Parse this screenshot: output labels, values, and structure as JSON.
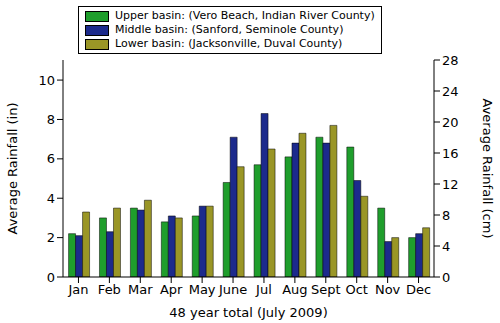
{
  "chart_data": {
    "type": "bar",
    "categories": [
      "Jan",
      "Feb",
      "Mar",
      "Apr",
      "May",
      "June",
      "Jul",
      "Aug",
      "Sept",
      "Oct",
      "Nov",
      "Dec"
    ],
    "x_label": "48 year total (July 2009)",
    "y_label": "Average Rainfall (in)",
    "y2_label": "Average Rainfall (cm)",
    "series": [
      {
        "name": "Upper basin: (Vero Beach, Indian River County)",
        "color": "#1f9e2c",
        "values": [
          2.2,
          3.0,
          3.5,
          2.8,
          3.1,
          4.8,
          5.7,
          6.1,
          7.1,
          6.6,
          3.5,
          2.0
        ]
      },
      {
        "name": "Middle basin: (Sanford, Seminole County)",
        "color": "#1c2a8c",
        "values": [
          2.1,
          2.3,
          3.4,
          3.1,
          3.6,
          7.1,
          8.3,
          6.8,
          6.8,
          4.9,
          1.8,
          2.2
        ]
      },
      {
        "name": "Lower basin: (Jacksonville, Duval County)",
        "color": "#9a9626",
        "values": [
          3.3,
          3.5,
          3.9,
          3.0,
          3.6,
          5.6,
          6.5,
          7.3,
          7.7,
          4.1,
          2.0,
          2.5
        ]
      }
    ],
    "ylim": [
      0,
      11.02
    ],
    "yticks": [
      0,
      2,
      4,
      6,
      8,
      10
    ],
    "y2lim": [
      0,
      28
    ],
    "y2ticks": [
      0,
      4,
      8,
      12,
      16,
      20,
      24,
      28
    ],
    "legend": "top-left",
    "grid": false
  }
}
